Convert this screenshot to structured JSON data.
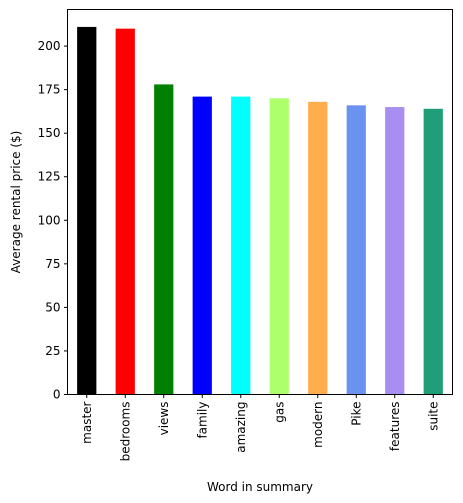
{
  "chart_data": {
    "type": "bar",
    "title": "",
    "xlabel": "Word in summary",
    "ylabel": "Average rental price ($)",
    "ylim": [
      0,
      221
    ],
    "yticks": [
      0,
      25,
      50,
      75,
      100,
      125,
      150,
      175,
      200
    ],
    "grid": false,
    "categories": [
      "master",
      "bedrooms",
      "views",
      "family",
      "amazing",
      "gas",
      "modern",
      "Pike",
      "features",
      "suite"
    ],
    "values": [
      211,
      210,
      178,
      171,
      171,
      170,
      168,
      166,
      165,
      164
    ],
    "colors": [
      "#000000",
      "#ff0000",
      "#008000",
      "#0000ff",
      "#00ffff",
      "#adff6b",
      "#ffad4d",
      "#6b92f0",
      "#a98ef2",
      "#1f9e77"
    ]
  }
}
